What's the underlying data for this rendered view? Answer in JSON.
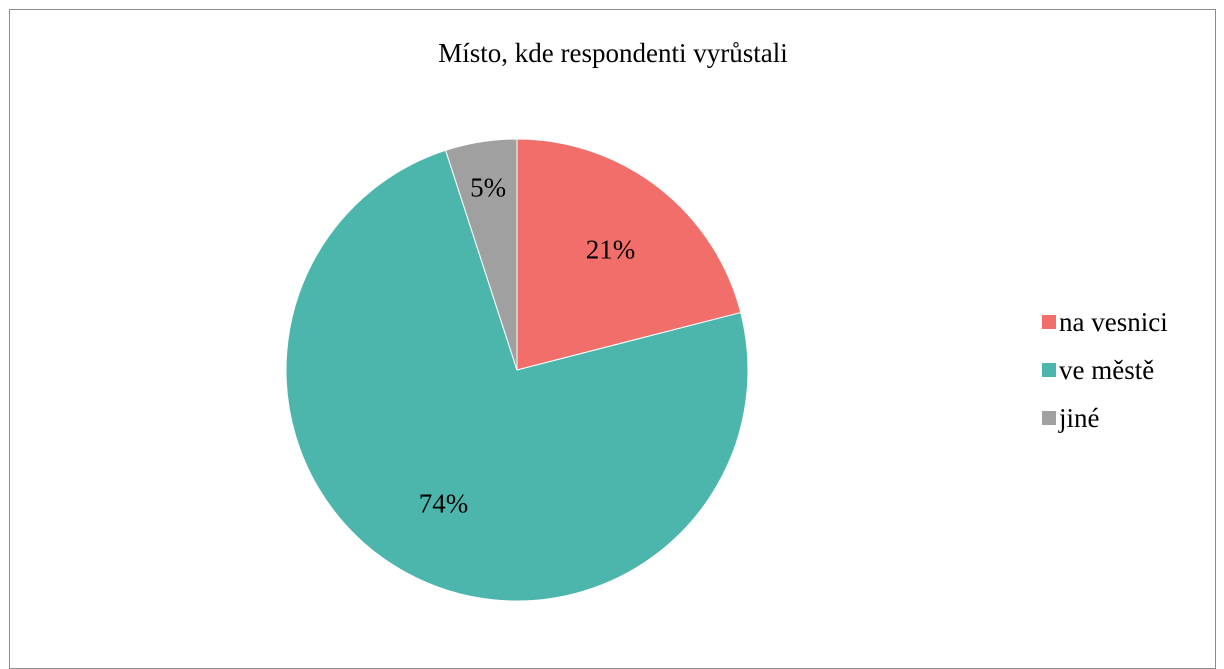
{
  "chart_data": {
    "type": "pie",
    "title": "Místo, kde respondenti vyrůstali",
    "categories": [
      "na vesnici",
      "ve městě",
      "jiné"
    ],
    "values": [
      21,
      74,
      5
    ],
    "data_labels": [
      "21%",
      "74%",
      "5%"
    ],
    "colors": [
      "#f26e6b",
      "#4db6ac",
      "#a0a0a0"
    ],
    "legend_position": "right"
  }
}
